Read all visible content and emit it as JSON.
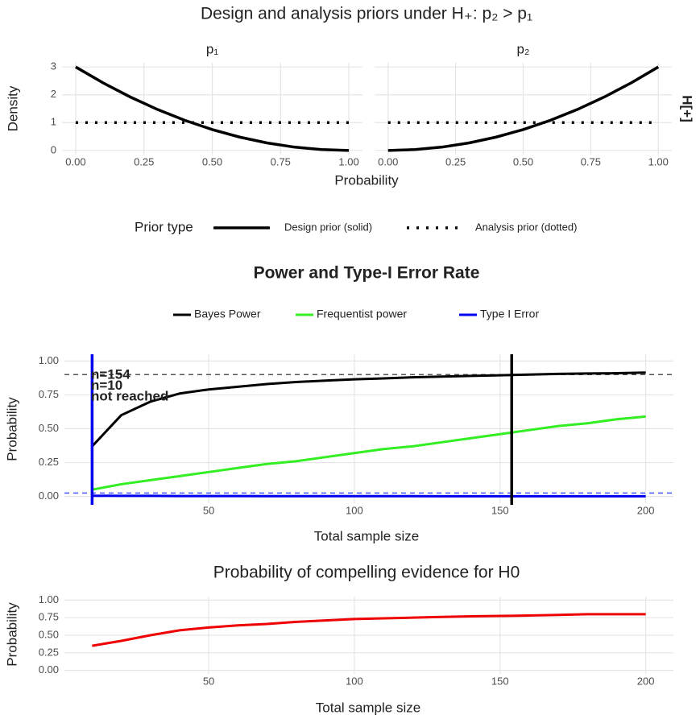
{
  "chart_data": [
    {
      "type": "facet-line",
      "title": "Design and analysis priors under H₊: p₂ > p₁",
      "facets": [
        "p₁",
        "p₂"
      ],
      "strip_label": "H[+]",
      "x_label": "Probability",
      "y_label": "Density",
      "x": [
        0,
        0.1,
        0.2,
        0.3,
        0.4,
        0.5,
        0.6,
        0.7,
        0.8,
        0.9,
        1.0
      ],
      "series": [
        {
          "name": "Design prior (solid)",
          "color": "#000000",
          "dash": "solid",
          "values": [
            [
              3,
              2.43,
              1.92,
              1.47,
              1.08,
              0.75,
              0.48,
              0.27,
              0.12,
              0.03,
              0
            ],
            [
              0,
              0.03,
              0.12,
              0.27,
              0.48,
              0.75,
              1.08,
              1.47,
              1.92,
              2.43,
              3
            ]
          ]
        },
        {
          "name": "Analysis prior (dotted)",
          "color": "#000000",
          "dash": "dotted",
          "values": [
            [
              1,
              1,
              1,
              1,
              1,
              1,
              1,
              1,
              1,
              1,
              1
            ],
            [
              1,
              1,
              1,
              1,
              1,
              1,
              1,
              1,
              1,
              1,
              1
            ]
          ]
        }
      ],
      "legend_title": "Prior type",
      "xlim": [
        -0.05,
        1.05
      ],
      "ylim": [
        -0.15,
        3.15
      ],
      "xticks": [
        {
          "value": 0,
          "label": "0.00"
        },
        {
          "value": 0.25,
          "label": "0.25"
        },
        {
          "value": 0.5,
          "label": "0.50"
        },
        {
          "value": 0.75,
          "label": "0.75"
        },
        {
          "value": 1,
          "label": "1.00"
        }
      ],
      "yticks": [
        0,
        1,
        2,
        3
      ],
      "grid": true
    },
    {
      "type": "line",
      "title": "Power and Type-I Error Rate",
      "x_label": "Total sample size",
      "y_label": "Probability",
      "x": [
        10,
        20,
        30,
        40,
        50,
        60,
        70,
        80,
        90,
        100,
        110,
        120,
        130,
        140,
        150,
        160,
        170,
        180,
        190,
        200
      ],
      "series": [
        {
          "name": "Bayes Power",
          "color": "#000000",
          "values": [
            0.37,
            0.6,
            0.7,
            0.76,
            0.79,
            0.81,
            0.83,
            0.845,
            0.855,
            0.865,
            0.872,
            0.88,
            0.885,
            0.89,
            0.895,
            0.9,
            0.905,
            0.908,
            0.91,
            0.915
          ]
        },
        {
          "name": "Frequentist power",
          "color": "#33ee22",
          "values": [
            0.05,
            0.09,
            0.12,
            0.15,
            0.18,
            0.21,
            0.24,
            0.26,
            0.29,
            0.32,
            0.35,
            0.37,
            0.4,
            0.43,
            0.46,
            0.49,
            0.52,
            0.54,
            0.57,
            0.59
          ]
        },
        {
          "name": "Type I Error",
          "color": "#0000ee",
          "values": [
            0.005,
            0.004,
            0.004,
            0.003,
            0.003,
            0.003,
            0.002,
            0.002,
            0.002,
            0.002,
            0.002,
            0.002,
            0.001,
            0.001,
            0.001,
            0.001,
            0.001,
            0.001,
            0.001,
            0.001
          ]
        }
      ],
      "hlines": [
        {
          "value": 0.9,
          "color": "#555555"
        },
        {
          "value": 0.025,
          "color": "#4455ff"
        }
      ],
      "vlines": [
        {
          "value": 154,
          "color": "#000000"
        },
        {
          "value": 10,
          "color": "#0000ee"
        }
      ],
      "annotations": [
        {
          "text": "n=154",
          "color": "#000000"
        },
        {
          "text": "n=10",
          "color": "#0000ee"
        },
        {
          "text": "not reached",
          "color": "#33ee22"
        }
      ],
      "xlim": [
        0.5,
        209.5
      ],
      "ylim": [
        -0.05,
        1.05
      ],
      "xticks": [
        50,
        100,
        150,
        200
      ],
      "yticks": [
        {
          "value": 0,
          "label": "0.00"
        },
        {
          "value": 0.25,
          "label": "0.25"
        },
        {
          "value": 0.5,
          "label": "0.50"
        },
        {
          "value": 0.75,
          "label": "0.75"
        },
        {
          "value": 1,
          "label": "1.00"
        }
      ],
      "grid": true
    },
    {
      "type": "line",
      "title": "Probability of compelling evidence for H0",
      "x_label": "Total sample size",
      "y_label": "Probability",
      "x": [
        10,
        20,
        30,
        40,
        50,
        60,
        70,
        80,
        90,
        100,
        110,
        120,
        130,
        140,
        150,
        160,
        170,
        180,
        190,
        200
      ],
      "series": [
        {
          "color": "#ee0000",
          "values": [
            0.35,
            0.42,
            0.5,
            0.57,
            0.61,
            0.64,
            0.66,
            0.69,
            0.71,
            0.73,
            0.74,
            0.75,
            0.76,
            0.77,
            0.775,
            0.78,
            0.79,
            0.8,
            0.8,
            0.8
          ]
        }
      ],
      "xlim": [
        0.5,
        209.5
      ],
      "ylim": [
        -0.05,
        1.05
      ],
      "xticks": [
        50,
        100,
        150,
        200
      ],
      "yticks": [
        {
          "value": 0,
          "label": "0.00"
        },
        {
          "value": 0.25,
          "label": "0.25"
        },
        {
          "value": 0.5,
          "label": "0.50"
        },
        {
          "value": 0.75,
          "label": "0.75"
        },
        {
          "value": 1,
          "label": "1.00"
        }
      ],
      "grid": true
    }
  ]
}
